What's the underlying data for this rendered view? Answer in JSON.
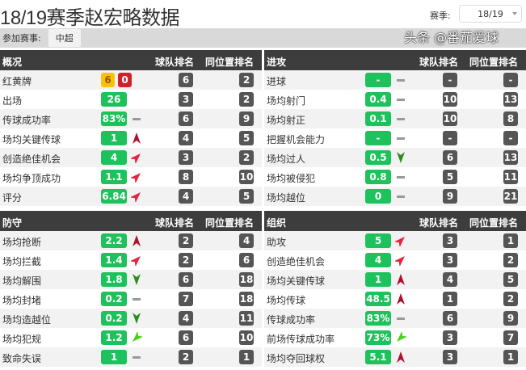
{
  "header": {
    "title": "18/19赛季赵宏略数据",
    "season_label": "赛季:",
    "season_value": "18/19",
    "competition_label": "参加赛事:",
    "competition": "中超"
  },
  "colors": {
    "value_box": "#1ec25c",
    "rank_box": "#555555",
    "header_bg": "#3d3d3d",
    "yellow_card": "#ffc107",
    "red_card": "#d0202a"
  },
  "panels": [
    {
      "title": "概况",
      "col_team": "球队排名",
      "col_pos": "同位置排名",
      "rows": [
        {
          "label": "红黄牌",
          "yellow": "6",
          "red": "0",
          "trend": "none",
          "team": "6",
          "pos": "2"
        },
        {
          "label": "出场",
          "value": "26",
          "trend": "none",
          "team": "3",
          "pos": "2"
        },
        {
          "label": "传球成功率",
          "value": "83%",
          "trend": "flat",
          "team": "6",
          "pos": "9"
        },
        {
          "label": "场均关键传球",
          "value": "1",
          "trend": "up",
          "team": "4",
          "pos": "5"
        },
        {
          "label": "创造绝佳机会",
          "value": "4",
          "trend": "up-right",
          "team": "3",
          "pos": "2"
        },
        {
          "label": "场均争顶成功",
          "value": "1.1",
          "trend": "up-right",
          "team": "8",
          "pos": "10"
        },
        {
          "label": "评分",
          "value": "6.84",
          "trend": "up-right",
          "team": "4",
          "pos": "5"
        }
      ]
    },
    {
      "title": "进攻",
      "col_team": "球队排名",
      "col_pos": "同位置排名",
      "rows": [
        {
          "label": "进球",
          "value": "-",
          "trend": "flat",
          "team": "-",
          "pos": "-"
        },
        {
          "label": "场均射门",
          "value": "0.4",
          "trend": "flat",
          "team": "10",
          "pos": "13"
        },
        {
          "label": "场均射正",
          "value": "0.1",
          "trend": "flat",
          "team": "10",
          "pos": "8"
        },
        {
          "label": "把握机会能力",
          "value": "-",
          "trend": "flat",
          "team": "-",
          "pos": "-"
        },
        {
          "label": "场均过人",
          "value": "0.5",
          "trend": "down",
          "team": "6",
          "pos": "13"
        },
        {
          "label": "场均被侵犯",
          "value": "0.8",
          "trend": "flat",
          "team": "5",
          "pos": "11"
        },
        {
          "label": "场均越位",
          "value": "0",
          "trend": "flat",
          "team": "9",
          "pos": "21"
        }
      ]
    },
    {
      "title": "防守",
      "col_team": "球队排名",
      "col_pos": "同位置排名",
      "rows": [
        {
          "label": "场均抢断",
          "value": "2.2",
          "trend": "up",
          "team": "2",
          "pos": "4"
        },
        {
          "label": "场均拦截",
          "value": "1.4",
          "trend": "up-right",
          "team": "2",
          "pos": "6"
        },
        {
          "label": "场均解围",
          "value": "1.8",
          "trend": "down",
          "team": "6",
          "pos": "18"
        },
        {
          "label": "场均封堵",
          "value": "0.2",
          "trend": "flat",
          "team": "7",
          "pos": "18"
        },
        {
          "label": "场均造越位",
          "value": "0.2",
          "trend": "down",
          "team": "4",
          "pos": "11"
        },
        {
          "label": "场均犯规",
          "value": "1.2",
          "trend": "down-left",
          "team": "6",
          "pos": "10"
        },
        {
          "label": "致命失误",
          "value": "1",
          "trend": "flat",
          "team": "2",
          "pos": "1"
        }
      ]
    },
    {
      "title": "组织",
      "col_team": "球队排名",
      "col_pos": "同位置排名",
      "rows": [
        {
          "label": "助攻",
          "value": "5",
          "trend": "up-right",
          "team": "3",
          "pos": "1"
        },
        {
          "label": "创造绝佳机会",
          "value": "4",
          "trend": "up-right",
          "team": "3",
          "pos": "2"
        },
        {
          "label": "场均关键传球",
          "value": "1",
          "trend": "up",
          "team": "4",
          "pos": "5"
        },
        {
          "label": "场均传球",
          "value": "48.5",
          "trend": "up",
          "team": "1",
          "pos": "2"
        },
        {
          "label": "传球成功率",
          "value": "83%",
          "trend": "flat",
          "team": "6",
          "pos": "9"
        },
        {
          "label": "前场传球成功率",
          "value": "73%",
          "trend": "down-left",
          "team": "3",
          "pos": "7"
        },
        {
          "label": "场均夺回球权",
          "value": "5.1",
          "trend": "up",
          "team": "3",
          "pos": "1"
        }
      ]
    }
  ],
  "watermark": "头条 @番茄爱球"
}
